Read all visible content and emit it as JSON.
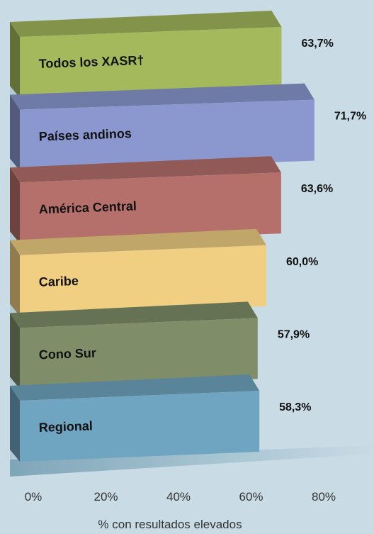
{
  "chart_data": {
    "type": "bar",
    "orientation": "horizontal",
    "categories": [
      "Todos los XASR†",
      "Países andinos",
      "América Central",
      "Caribe",
      "Cono Sur",
      "Regional"
    ],
    "values": [
      63.7,
      71.7,
      63.6,
      60.0,
      57.9,
      58.3
    ],
    "value_labels": [
      "63,7%",
      "71,7%",
      "63,6%",
      "60,0%",
      "57,9%",
      "58,3%"
    ],
    "colors": [
      "#a4b95c",
      "#8b98d0",
      "#b5706b",
      "#f0cf82",
      "#7f8e69",
      "#6fa5c1"
    ],
    "xlim": [
      0,
      80
    ],
    "xticks": [
      {
        "value": 0,
        "label": "0%"
      },
      {
        "value": 20,
        "label": "20%"
      },
      {
        "value": 40,
        "label": "40%"
      },
      {
        "value": 60,
        "label": "60%"
      },
      {
        "value": 80,
        "label": "80%"
      }
    ],
    "xlabel": "% con resultados elevados"
  }
}
